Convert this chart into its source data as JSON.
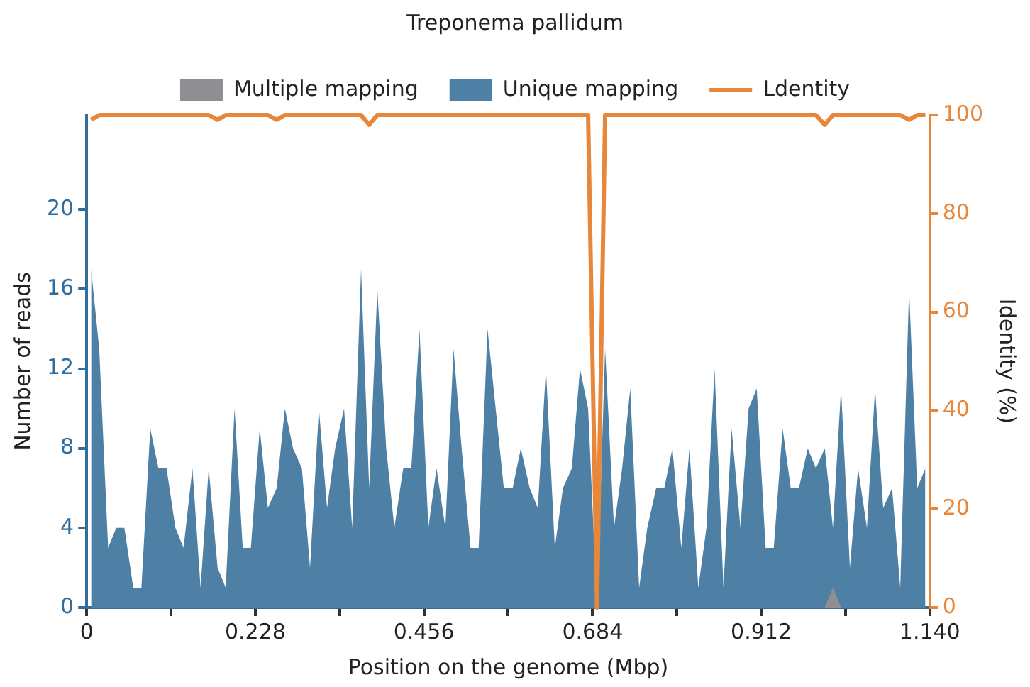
{
  "chart_data": {
    "type": "area",
    "title": "Treponema pallidum",
    "xlabel": "Position on the genome (Mbp)",
    "ylabel": "Number of reads",
    "y2label": "Identity (%)",
    "x": [
      0.006,
      0.017,
      0.029,
      0.04,
      0.051,
      0.063,
      0.074,
      0.086,
      0.097,
      0.108,
      0.12,
      0.131,
      0.143,
      0.154,
      0.165,
      0.177,
      0.188,
      0.2,
      0.211,
      0.222,
      0.234,
      0.245,
      0.257,
      0.268,
      0.279,
      0.291,
      0.302,
      0.314,
      0.325,
      0.336,
      0.348,
      0.359,
      0.371,
      0.382,
      0.393,
      0.405,
      0.416,
      0.428,
      0.439,
      0.45,
      0.462,
      0.473,
      0.485,
      0.496,
      0.507,
      0.519,
      0.53,
      0.542,
      0.553,
      0.564,
      0.576,
      0.587,
      0.599,
      0.61,
      0.621,
      0.633,
      0.644,
      0.656,
      0.667,
      0.678,
      0.69,
      0.701,
      0.713,
      0.724,
      0.735,
      0.747,
      0.758,
      0.77,
      0.781,
      0.792,
      0.804,
      0.815,
      0.827,
      0.838,
      0.849,
      0.861,
      0.872,
      0.884,
      0.895,
      0.906,
      0.918,
      0.929,
      0.941,
      0.952,
      0.963,
      0.975,
      0.986,
      0.998,
      1.009,
      1.02,
      1.032,
      1.043,
      1.055,
      1.066,
      1.077,
      1.089,
      1.1,
      1.112,
      1.123,
      1.134
    ],
    "series": [
      {
        "name": "Multiple mapping",
        "color": "#8e8e93",
        "values": [
          0,
          0,
          0,
          0,
          0,
          0,
          0,
          0,
          0,
          0,
          0,
          0,
          0,
          0,
          0,
          0,
          0,
          0,
          0,
          0,
          0,
          0,
          0,
          0,
          0,
          0,
          0,
          0,
          0,
          0,
          0,
          0,
          0,
          0,
          0,
          0,
          0,
          0,
          0,
          0,
          0,
          0,
          0,
          0,
          0,
          0,
          0,
          0,
          0,
          0,
          0,
          0,
          0,
          0,
          0,
          0,
          0,
          0,
          0,
          0,
          0,
          0,
          0,
          0,
          0,
          0,
          0,
          0,
          0,
          0,
          0,
          0,
          0,
          0,
          0,
          0,
          0,
          0,
          0,
          0,
          0,
          0,
          0,
          0,
          0,
          0,
          0,
          0,
          1,
          0,
          0,
          0,
          0,
          0,
          0,
          0,
          0,
          0,
          0,
          0
        ]
      },
      {
        "name": "Unique mapping",
        "color": "#4e80a6",
        "values": [
          17,
          13,
          3,
          4,
          4,
          1,
          1,
          9,
          7,
          7,
          4,
          3,
          7,
          1,
          7,
          2,
          1,
          10,
          3,
          3,
          9,
          5,
          6,
          10,
          8,
          7,
          2,
          10,
          5,
          8,
          10,
          4,
          17,
          6,
          16,
          8,
          4,
          7,
          7,
          14,
          4,
          7,
          4,
          13,
          8,
          3,
          3,
          14,
          10,
          6,
          6,
          8,
          6,
          5,
          12,
          3,
          6,
          7,
          12,
          10,
          0,
          13,
          4,
          7,
          11,
          1,
          4,
          6,
          6,
          8,
          3,
          8,
          1,
          4,
          12,
          1,
          9,
          4,
          10,
          11,
          3,
          3,
          9,
          6,
          6,
          8,
          7,
          8,
          4,
          11,
          2,
          7,
          4,
          11,
          5,
          6,
          1,
          16,
          6,
          7
        ]
      },
      {
        "name": "Ldentity",
        "type": "line",
        "axis": "y2",
        "color": "#e8873a",
        "values": [
          99,
          100,
          100,
          100,
          100,
          100,
          100,
          100,
          100,
          100,
          100,
          100,
          100,
          100,
          100,
          99,
          100,
          100,
          100,
          100,
          100,
          100,
          99,
          100,
          100,
          100,
          100,
          100,
          100,
          100,
          100,
          100,
          100,
          98,
          100,
          100,
          100,
          100,
          100,
          100,
          100,
          100,
          100,
          100,
          100,
          100,
          100,
          100,
          100,
          100,
          100,
          100,
          100,
          100,
          100,
          100,
          100,
          100,
          100,
          100,
          0,
          100,
          100,
          100,
          100,
          100,
          100,
          100,
          100,
          100,
          100,
          100,
          100,
          100,
          100,
          100,
          100,
          100,
          100,
          100,
          100,
          100,
          100,
          100,
          100,
          100,
          100,
          98,
          100,
          100,
          100,
          100,
          100,
          100,
          100,
          100,
          100,
          99,
          100,
          100
        ]
      }
    ],
    "xlim": [
      0,
      1.14
    ],
    "xticks": [
      0,
      {
        "value": 0.114,
        "label": null
      },
      0.228,
      {
        "value": 0.342,
        "label": null
      },
      0.456,
      {
        "value": 0.57,
        "label": null
      },
      0.684,
      {
        "value": 0.798,
        "label": null
      },
      0.912,
      {
        "value": 1.026,
        "label": null
      },
      {
        "value": 1.14,
        "label": "1.140"
      }
    ],
    "ylim": [
      0,
      24.75
    ],
    "yticks": [
      0,
      4,
      8,
      12,
      16,
      20
    ],
    "y2lim": [
      0,
      100
    ],
    "y2ticks": [
      0,
      20,
      40,
      60,
      80,
      100
    ],
    "legend": "top",
    "grid": false,
    "marker": "none"
  }
}
